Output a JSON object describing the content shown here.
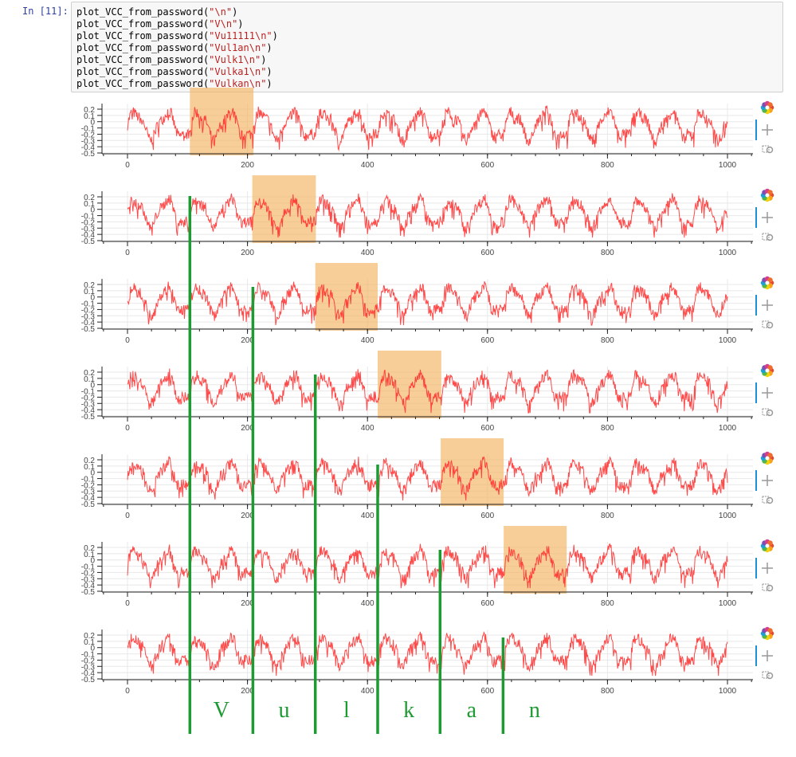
{
  "cell": {
    "prompt": "In [11]:",
    "function_name": "plot_VCC_from_password",
    "arguments": [
      "\"\\n\"",
      "\"V\\n\"",
      "\"Vu11111\\n\"",
      "\"Vul1an\\n\"",
      "\"Vulk1\\n\"",
      "\"Vulka1\\n\"",
      "\"Vulkan\\n\""
    ]
  },
  "toolbar": {
    "icons": [
      "bokeh-logo-icon",
      "pan-icon",
      "box-zoom-icon"
    ],
    "active_color": "#1f8fd6"
  },
  "chart_data": {
    "type": "line",
    "count": 7,
    "series_color": "#ff2a2a",
    "highlight_color": "#f5b461",
    "marker_color": "#1e9a33",
    "xlim": [
      -50,
      1050
    ],
    "ylim": [
      -0.5,
      0.25
    ],
    "x_ticks": [
      0,
      200,
      400,
      600,
      800,
      1000
    ],
    "x_tick_labels": [
      "0",
      "200",
      "400",
      "600",
      "800",
      "1000"
    ],
    "y_ticks": [
      0.2,
      0.1,
      0,
      -0.1,
      -0.2,
      -0.3,
      -0.4,
      -0.5
    ],
    "y_tick_labels": [
      "0.2",
      "0.1",
      "0",
      "-0.1",
      "-0.2",
      "-0.3",
      "-0.4",
      "-0.5"
    ],
    "grid": true,
    "highlights": [
      {
        "plot": 0,
        "x": [
          104,
          210
        ]
      },
      {
        "plot": 1,
        "x": [
          208,
          314
        ]
      },
      {
        "plot": 2,
        "x": [
          313,
          417
        ]
      },
      {
        "plot": 3,
        "x": [
          417,
          523
        ]
      },
      {
        "plot": 4,
        "x": [
          522,
          627
        ]
      },
      {
        "plot": 5,
        "x": [
          627,
          732
        ]
      }
    ],
    "char_boundaries": [
      104,
      209,
      313,
      417,
      521,
      626
    ],
    "boundary_labels": [
      "V",
      "u",
      "l",
      "k",
      "a",
      "n"
    ]
  }
}
